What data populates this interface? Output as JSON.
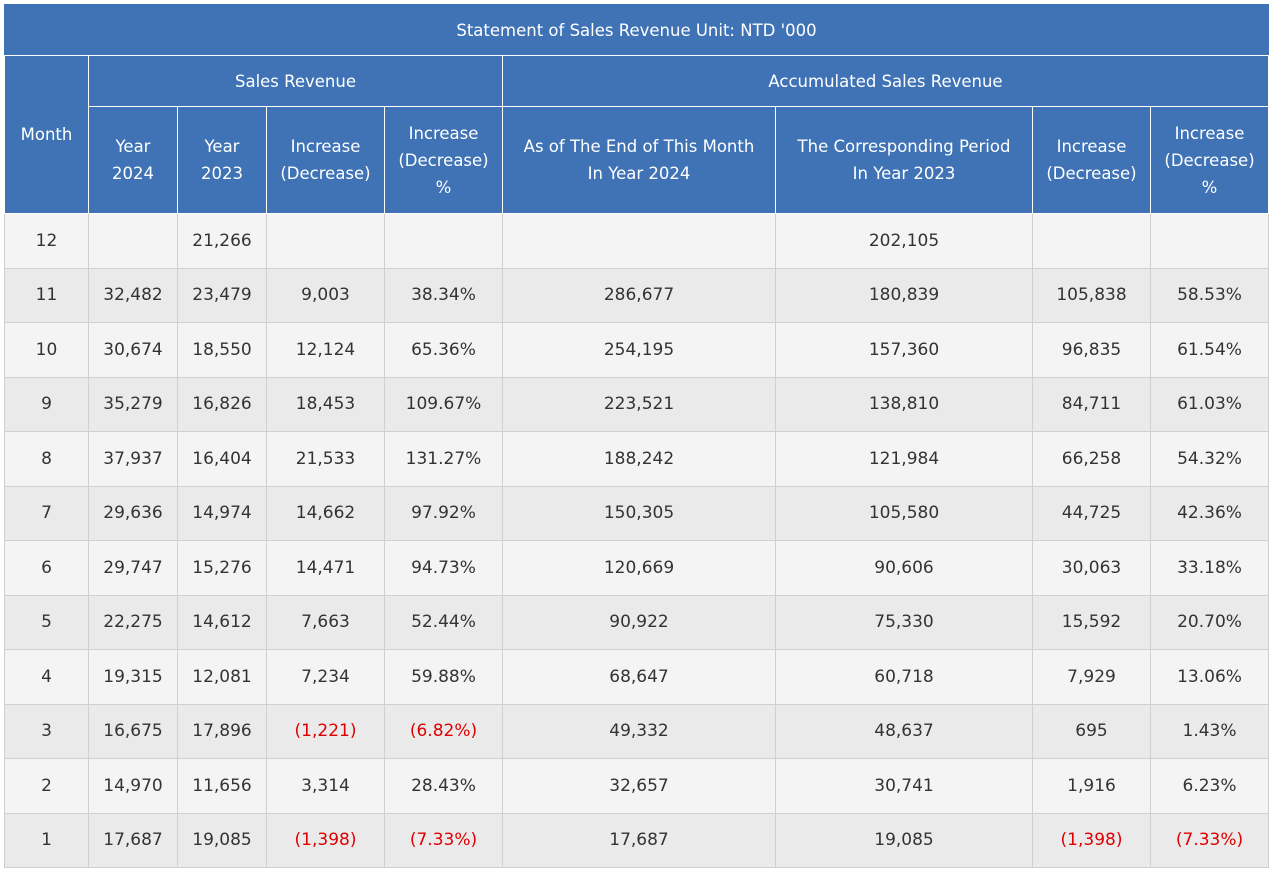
{
  "table": {
    "title": "Statement of Sales Revenue  Unit: NTD '000",
    "month_header": "Month",
    "groups": {
      "sales_revenue": "Sales Revenue",
      "accumulated_sales_revenue": "Accumulated Sales Revenue"
    },
    "columns": {
      "year_2024": [
        "Year",
        "2024"
      ],
      "year_2023": [
        "Year",
        "2023"
      ],
      "increase": [
        "Increase",
        "(Decrease)"
      ],
      "increase_pct": [
        "Increase",
        "(Decrease)",
        "%"
      ],
      "acc_2024": [
        "As of The End of This Month",
        "In Year 2024"
      ],
      "acc_2023": [
        "The Corresponding Period",
        "In Year 2023"
      ],
      "acc_increase": [
        "Increase",
        "(Decrease)"
      ],
      "acc_increase_pct": [
        "Increase",
        "(Decrease)",
        "%"
      ]
    },
    "rows": [
      {
        "month": "12",
        "y2024": "",
        "y2023": "21,266",
        "inc": "",
        "inc_pct": "",
        "acc2024": "",
        "acc2023": "202,105",
        "acc_inc": "",
        "acc_inc_pct": ""
      },
      {
        "month": "11",
        "y2024": "32,482",
        "y2023": "23,479",
        "inc": "9,003",
        "inc_pct": "38.34%",
        "acc2024": "286,677",
        "acc2023": "180,839",
        "acc_inc": "105,838",
        "acc_inc_pct": "58.53%"
      },
      {
        "month": "10",
        "y2024": "30,674",
        "y2023": "18,550",
        "inc": "12,124",
        "inc_pct": "65.36%",
        "acc2024": "254,195",
        "acc2023": "157,360",
        "acc_inc": "96,835",
        "acc_inc_pct": "61.54%"
      },
      {
        "month": "9",
        "y2024": "35,279",
        "y2023": "16,826",
        "inc": "18,453",
        "inc_pct": "109.67%",
        "acc2024": "223,521",
        "acc2023": "138,810",
        "acc_inc": "84,711",
        "acc_inc_pct": "61.03%"
      },
      {
        "month": "8",
        "y2024": "37,937",
        "y2023": "16,404",
        "inc": "21,533",
        "inc_pct": "131.27%",
        "acc2024": "188,242",
        "acc2023": "121,984",
        "acc_inc": "66,258",
        "acc_inc_pct": "54.32%"
      },
      {
        "month": "7",
        "y2024": "29,636",
        "y2023": "14,974",
        "inc": "14,662",
        "inc_pct": "97.92%",
        "acc2024": "150,305",
        "acc2023": "105,580",
        "acc_inc": "44,725",
        "acc_inc_pct": "42.36%"
      },
      {
        "month": "6",
        "y2024": "29,747",
        "y2023": "15,276",
        "inc": "14,471",
        "inc_pct": "94.73%",
        "acc2024": "120,669",
        "acc2023": "90,606",
        "acc_inc": "30,063",
        "acc_inc_pct": "33.18%"
      },
      {
        "month": "5",
        "y2024": "22,275",
        "y2023": "14,612",
        "inc": "7,663",
        "inc_pct": "52.44%",
        "acc2024": "90,922",
        "acc2023": "75,330",
        "acc_inc": "15,592",
        "acc_inc_pct": "20.70%"
      },
      {
        "month": "4",
        "y2024": "19,315",
        "y2023": "12,081",
        "inc": "7,234",
        "inc_pct": "59.88%",
        "acc2024": "68,647",
        "acc2023": "60,718",
        "acc_inc": "7,929",
        "acc_inc_pct": "13.06%"
      },
      {
        "month": "3",
        "y2024": "16,675",
        "y2023": "17,896",
        "inc": "(1,221)",
        "inc_pct": "(6.82%)",
        "acc2024": "49,332",
        "acc2023": "48,637",
        "acc_inc": "695",
        "acc_inc_pct": "1.43%"
      },
      {
        "month": "2",
        "y2024": "14,970",
        "y2023": "11,656",
        "inc": "3,314",
        "inc_pct": "28.43%",
        "acc2024": "32,657",
        "acc2023": "30,741",
        "acc_inc": "1,916",
        "acc_inc_pct": "6.23%"
      },
      {
        "month": "1",
        "y2024": "17,687",
        "y2023": "19,085",
        "inc": "(1,398)",
        "inc_pct": "(7.33%)",
        "acc2024": "17,687",
        "acc2023": "19,085",
        "acc_inc": "(1,398)",
        "acc_inc_pct": "(7.33%)"
      }
    ]
  },
  "colors": {
    "header_bg": "#3f73b5",
    "header_text": "#ffffff",
    "negative_text": "#e00000",
    "row_odd": "#f4f4f4",
    "row_even": "#eaeaea"
  }
}
